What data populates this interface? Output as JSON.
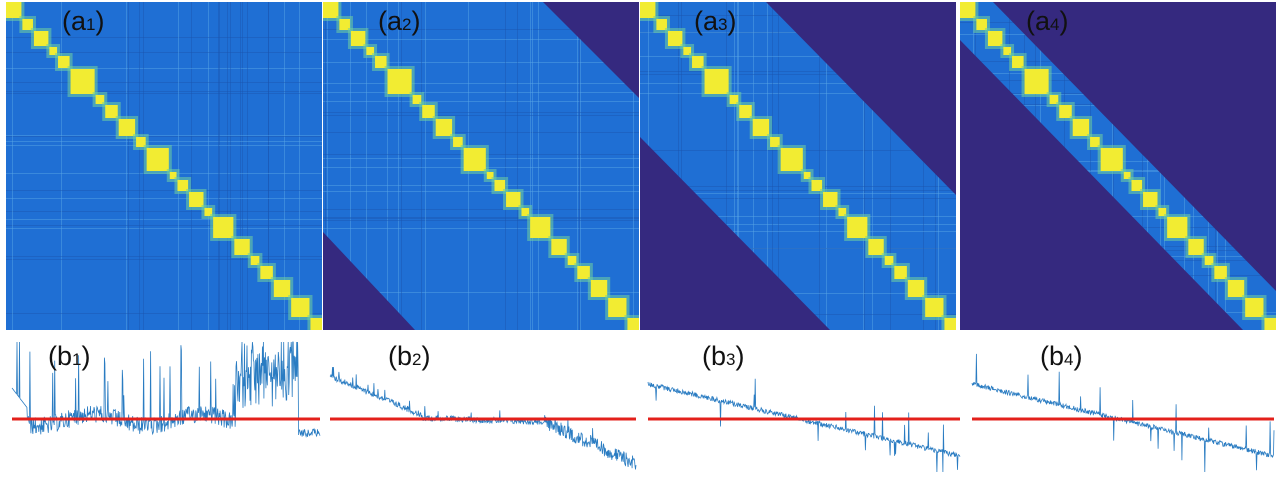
{
  "colors": {
    "background": "#ffffff",
    "matrix_base": "#1f6fd4",
    "matrix_block": "#f2ec32",
    "masked_region": "#35297f",
    "signal_line": "#2a7cc2",
    "threshold_line": "#e3201b"
  },
  "panels_a": [
    {
      "prefix": "(a",
      "sub": "1",
      "suffix": ")",
      "mask": "none"
    },
    {
      "prefix": "(a",
      "sub": "2",
      "suffix": ")",
      "mask": "band-wide"
    },
    {
      "prefix": "(a",
      "sub": "3",
      "suffix": ")",
      "mask": "band-medium"
    },
    {
      "prefix": "(a",
      "sub": "4",
      "suffix": ")",
      "mask": "band-narrow"
    }
  ],
  "panels_b": [
    {
      "prefix": "(b",
      "sub": "1",
      "suffix": ")",
      "trend": "fluctuating"
    },
    {
      "prefix": "(b",
      "sub": "2",
      "suffix": ")",
      "trend": "decreasing"
    },
    {
      "prefix": "(b",
      "sub": "3",
      "suffix": ")",
      "trend": "decreasing"
    },
    {
      "prefix": "(b",
      "sub": "4",
      "suffix": ")",
      "trend": "decreasing"
    }
  ]
}
